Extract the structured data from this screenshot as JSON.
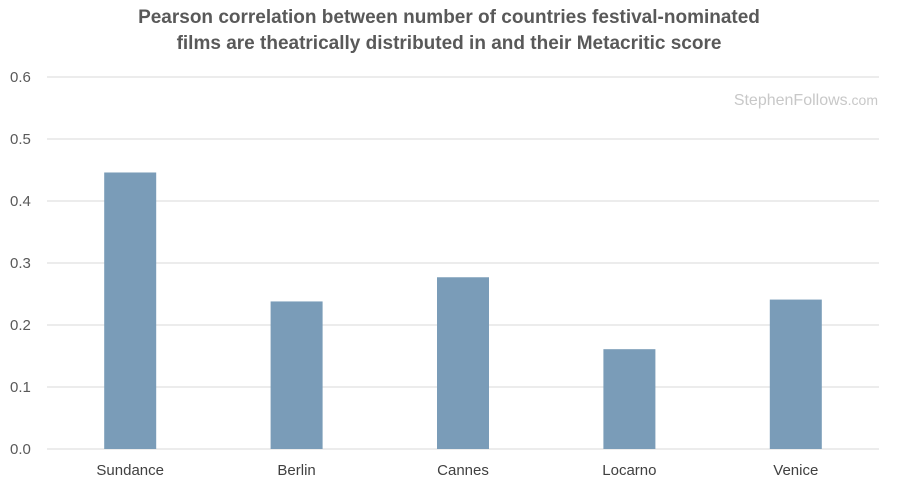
{
  "chart_data": {
    "type": "bar",
    "title_lines": [
      "Pearson correlation between number of countries festival-nominated",
      "films are theatrically distributed in and their Metacritic score"
    ],
    "categories": [
      "Sundance",
      "Berlin",
      "Cannes",
      "Locarno",
      "Venice"
    ],
    "values": [
      0.446,
      0.238,
      0.277,
      0.161,
      0.241
    ],
    "yticks": [
      "0.0",
      "0.1",
      "0.2",
      "0.3",
      "0.4",
      "0.5",
      "0.6"
    ],
    "ylim": [
      0,
      0.6
    ],
    "grid": true,
    "legend": "none",
    "bar_color": "#7a9cb8",
    "grid_color": "#d9d9d9"
  },
  "watermark": {
    "main": "StephenFollows",
    "domain": ".com"
  }
}
